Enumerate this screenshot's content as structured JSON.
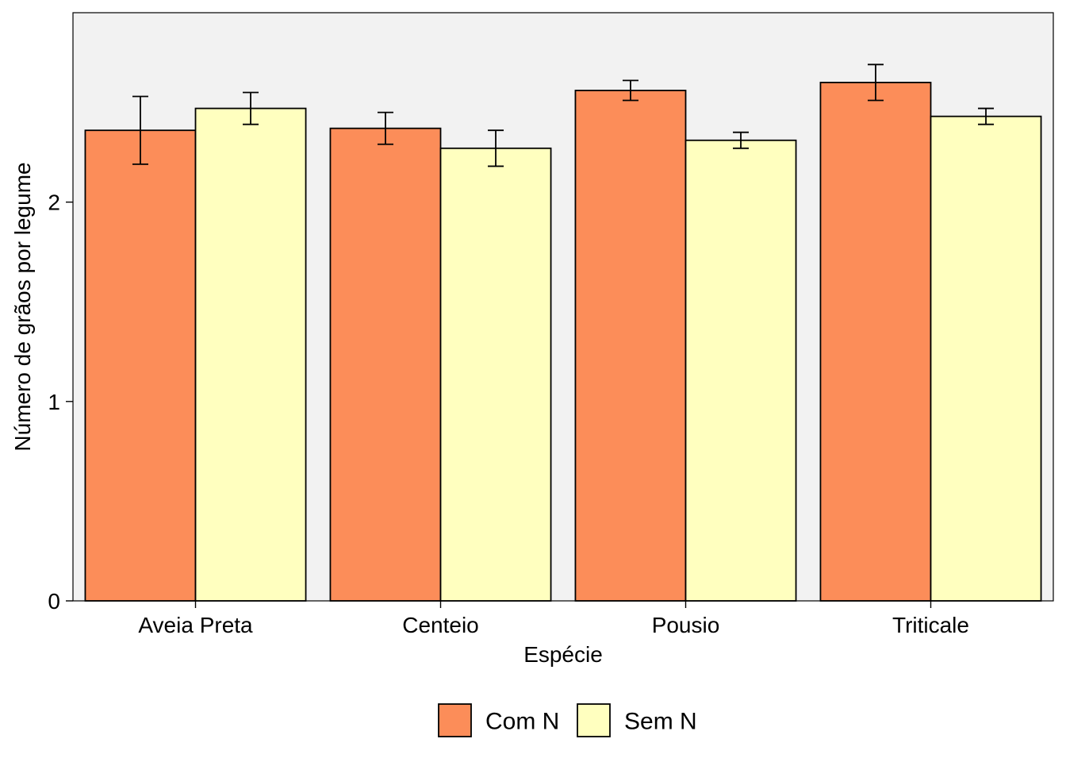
{
  "chart_data": {
    "type": "bar",
    "title": "",
    "xlabel": "Espécie",
    "ylabel": "Número de grãos por legume",
    "categories": [
      "Aveia Preta",
      "Centeio",
      "Pousio",
      "Triticale"
    ],
    "ylim": [
      0,
      2.95
    ],
    "yticks": [
      0,
      1,
      2
    ],
    "grid": false,
    "legend_position": "bottom",
    "series": [
      {
        "name": "Com N",
        "color": "#FC8D59",
        "values": [
          2.36,
          2.37,
          2.56,
          2.6
        ],
        "errors": [
          0.17,
          0.08,
          0.05,
          0.09
        ]
      },
      {
        "name": "Sem N",
        "color": "#FFFFBF",
        "values": [
          2.47,
          2.27,
          2.31,
          2.43
        ],
        "errors": [
          0.08,
          0.09,
          0.04,
          0.04
        ]
      }
    ],
    "panel_background": "#F2F2F2",
    "bar_outline": "#000000"
  }
}
